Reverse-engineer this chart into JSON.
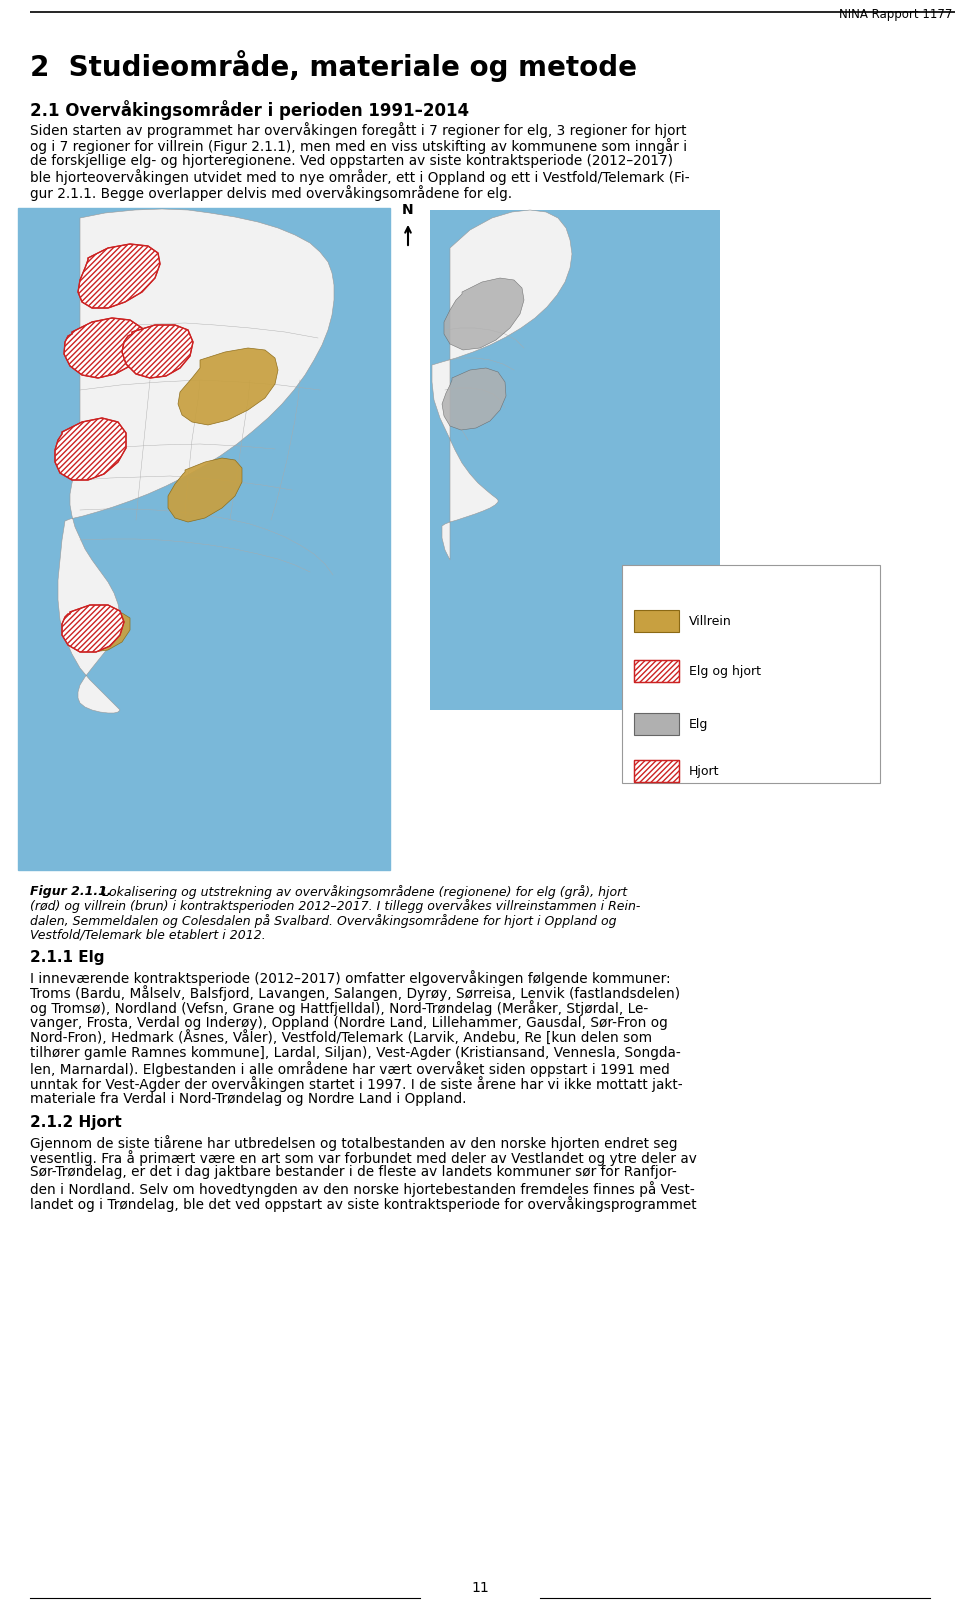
{
  "page_bg": "#ffffff",
  "header_text": "NINA Rapport 1177",
  "chapter_title": "2  Studieområde, materiale og metode",
  "section_title": "2.1 Overvåkingsområder i perioden 1991–2014",
  "body_lines": [
    "Siden starten av programmet har overvåkingen foregått i 7 regioner for elg, 3 regioner for hjort",
    "og i 7 regioner for villrein (Figur 2.1.1), men med en viss utskifting av kommunene som inngår i",
    "de forskjellige elg- og hjorteregionene. Ved oppstarten av siste kontraktsperiode (2012–2017)",
    "ble hjorteovervåkingen utvidet med to nye områder, ett i Oppland og ett i Vestfold/Telemark (Fi-",
    "gur 2.1.1. Begge overlapper delvis med overvåkingsområdene for elg."
  ],
  "fig_caption_bold": "Figur 2.1.1.",
  "fig_caption_rest_lines": [
    " Lokalisering og utstrekning av overvåkingsområdene (regionene) for elg (grå), hjort",
    "(rød) og villrein (brun) i kontraktsperioden 2012–2017. I tillegg overvåkes villreinstammen i Rein-",
    "dalen, Semmeldalen og Colesdalen på Svalbard. Overvåkingsområdene for hjort i Oppland og",
    "Vestfold/Telemark ble etablert i 2012."
  ],
  "section2_title": "2.1.1 Elg",
  "section2_body_lines": [
    "I inneværende kontraktsperiode (2012–2017) omfatter elgovervåkingen følgende kommuner:",
    "Troms (Bardu, Målselv, Balsfjord, Lavangen, Salangen, Dyrøy, Sørreisa, Lenvik (fastlandsdelen)",
    "og Tromsø), Nordland (Vefsn, Grane og Hattfjelldal), Nord-Trøndelag (Meråker, Stjørdal, Le-",
    "vanger, Frosta, Verdal og Inderøy), Oppland (Nordre Land, Lillehammer, Gausdal, Sør-Fron og",
    "Nord-Fron), Hedmark (Åsnes, Våler), Vestfold/Telemark (Larvik, Andebu, Re [kun delen som",
    "tilhører gamle Ramnes kommune], Lardal, Siljan), Vest-Agder (Kristiansand, Vennesla, Songda-",
    "len, Marnardal). Elgbestanden i alle områdene har vært overvåket siden oppstart i 1991 med",
    "unntak for Vest-Agder der overvåkingen startet i 1997. I de siste årene har vi ikke mottatt jakt-",
    "materiale fra Verdal i Nord-Trøndelag og Nordre Land i Oppland."
  ],
  "section3_title": "2.1.2 Hjort",
  "section3_body_lines": [
    "Gjennom de siste tiårene har utbredelsen og totalbestanden av den norske hjorten endret seg",
    "vesentlig. Fra å primært være en art som var forbundet med deler av Vestlandet og ytre deler av",
    "Sør-Trøndelag, er det i dag jaktbare bestander i de fleste av landets kommuner sør for Ranfjor-",
    "den i Nordland. Selv om hovedtyngden av den norske hjortebestanden fremdeles finnes på Vest-",
    "landet og i Trøndelag, ble det ved oppstart av siste kontraktsperiode for overvåkingsprogrammet"
  ],
  "page_number": "11",
  "ocean_color": "#7ab8d9",
  "land_color": "#f2f2f2",
  "land_edge_color": "#999999",
  "villrein_color": "#c8a040",
  "elg_hjort_color": "#cc2222",
  "elg_color": "#b0b0b0",
  "hjort_color": "#cc2222",
  "legend_villrein": "Villrein",
  "legend_elg_hjort": "Elg og hjort",
  "legend_elg": "Elg",
  "legend_hjort": "Hjort"
}
